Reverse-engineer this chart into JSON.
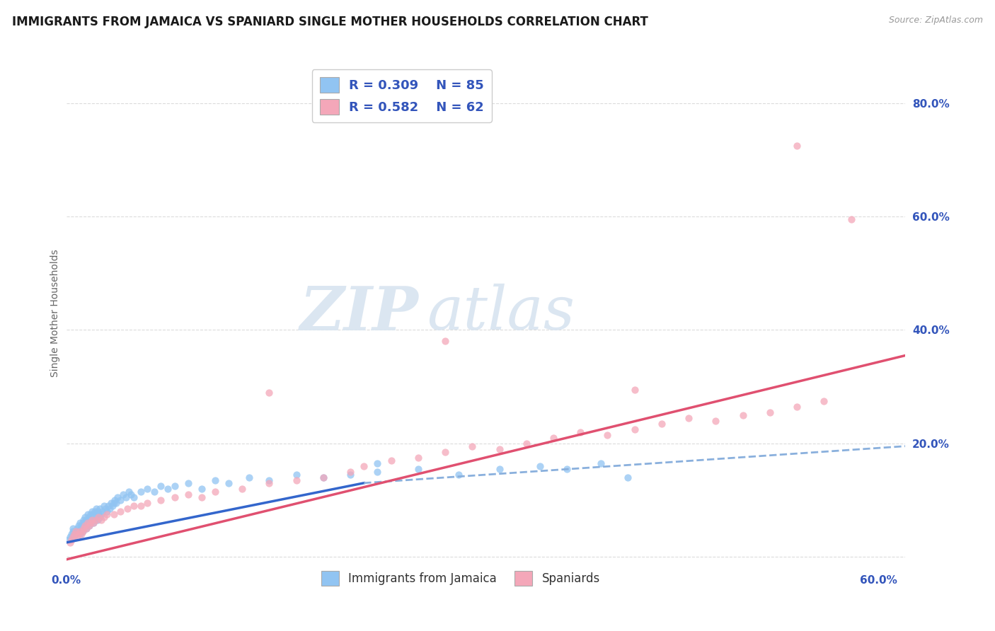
{
  "title": "IMMIGRANTS FROM JAMAICA VS SPANIARD SINGLE MOTHER HOUSEHOLDS CORRELATION CHART",
  "source": "Source: ZipAtlas.com",
  "ylabel": "Single Mother Households",
  "legend_label1": "Immigrants from Jamaica",
  "legend_label2": "Spaniards",
  "R1": 0.309,
  "N1": 85,
  "R2": 0.582,
  "N2": 62,
  "xlim": [
    0.0,
    0.62
  ],
  "ylim": [
    -0.02,
    0.88
  ],
  "ytick_values": [
    0.0,
    0.2,
    0.4,
    0.6,
    0.8
  ],
  "ytick_labels": [
    "",
    "20.0%",
    "40.0%",
    "60.0%",
    "80.0%"
  ],
  "xtick_values": [
    0.0,
    0.1,
    0.2,
    0.3,
    0.4,
    0.5,
    0.6
  ],
  "xtick_labels": [
    "0.0%",
    "",
    "",
    "",
    "",
    "",
    "60.0%"
  ],
  "color_jamaica": "#91C4F2",
  "color_spaniard": "#F4A7B9",
  "line_color_jamaica_solid": "#3366CC",
  "line_color_jamaica_dash": "#8AB0DD",
  "line_color_spaniard": "#E05070",
  "color_tick": "#3355BB",
  "watermark_color": "#D8E4F0",
  "background_color": "#FFFFFF",
  "grid_color": "#CCCCCC",
  "title_fontsize": 12,
  "axis_label_fontsize": 10,
  "tick_fontsize": 11,
  "jamaica_x": [
    0.002,
    0.003,
    0.004,
    0.005,
    0.005,
    0.006,
    0.007,
    0.008,
    0.008,
    0.009,
    0.01,
    0.01,
    0.01,
    0.011,
    0.011,
    0.012,
    0.012,
    0.013,
    0.013,
    0.014,
    0.014,
    0.015,
    0.015,
    0.016,
    0.016,
    0.017,
    0.017,
    0.018,
    0.018,
    0.019,
    0.019,
    0.02,
    0.02,
    0.021,
    0.021,
    0.022,
    0.022,
    0.023,
    0.023,
    0.024,
    0.025,
    0.025,
    0.026,
    0.027,
    0.028,
    0.029,
    0.03,
    0.031,
    0.032,
    0.033,
    0.034,
    0.035,
    0.036,
    0.037,
    0.038,
    0.04,
    0.042,
    0.044,
    0.046,
    0.048,
    0.05,
    0.055,
    0.06,
    0.065,
    0.07,
    0.075,
    0.08,
    0.09,
    0.1,
    0.11,
    0.12,
    0.135,
    0.15,
    0.17,
    0.19,
    0.21,
    0.23,
    0.26,
    0.29,
    0.32,
    0.35,
    0.37,
    0.395,
    0.415,
    0.23
  ],
  "jamaica_y": [
    0.03,
    0.035,
    0.04,
    0.045,
    0.05,
    0.035,
    0.04,
    0.045,
    0.05,
    0.055,
    0.04,
    0.045,
    0.06,
    0.05,
    0.055,
    0.045,
    0.06,
    0.05,
    0.065,
    0.055,
    0.07,
    0.05,
    0.065,
    0.06,
    0.075,
    0.055,
    0.07,
    0.06,
    0.075,
    0.065,
    0.08,
    0.06,
    0.075,
    0.065,
    0.08,
    0.07,
    0.085,
    0.065,
    0.08,
    0.075,
    0.07,
    0.085,
    0.075,
    0.08,
    0.09,
    0.085,
    0.08,
    0.09,
    0.085,
    0.095,
    0.09,
    0.095,
    0.1,
    0.095,
    0.105,
    0.1,
    0.11,
    0.105,
    0.115,
    0.11,
    0.105,
    0.115,
    0.12,
    0.115,
    0.125,
    0.12,
    0.125,
    0.13,
    0.12,
    0.135,
    0.13,
    0.14,
    0.135,
    0.145,
    0.14,
    0.145,
    0.15,
    0.155,
    0.145,
    0.155,
    0.16,
    0.155,
    0.165,
    0.14,
    0.165
  ],
  "spaniard_x": [
    0.003,
    0.004,
    0.005,
    0.006,
    0.007,
    0.008,
    0.009,
    0.01,
    0.011,
    0.012,
    0.013,
    0.014,
    0.015,
    0.016,
    0.017,
    0.018,
    0.019,
    0.02,
    0.022,
    0.024,
    0.026,
    0.028,
    0.03,
    0.035,
    0.04,
    0.045,
    0.05,
    0.055,
    0.06,
    0.07,
    0.08,
    0.09,
    0.1,
    0.11,
    0.13,
    0.15,
    0.17,
    0.19,
    0.21,
    0.22,
    0.24,
    0.26,
    0.28,
    0.3,
    0.32,
    0.34,
    0.36,
    0.38,
    0.4,
    0.42,
    0.44,
    0.46,
    0.48,
    0.5,
    0.52,
    0.54,
    0.56,
    0.58,
    0.28,
    0.15,
    0.42,
    0.54
  ],
  "spaniard_y": [
    0.025,
    0.03,
    0.035,
    0.04,
    0.045,
    0.035,
    0.04,
    0.045,
    0.04,
    0.045,
    0.05,
    0.055,
    0.05,
    0.06,
    0.055,
    0.06,
    0.065,
    0.06,
    0.065,
    0.07,
    0.065,
    0.07,
    0.075,
    0.075,
    0.08,
    0.085,
    0.09,
    0.09,
    0.095,
    0.1,
    0.105,
    0.11,
    0.105,
    0.115,
    0.12,
    0.13,
    0.135,
    0.14,
    0.15,
    0.16,
    0.17,
    0.175,
    0.185,
    0.195,
    0.19,
    0.2,
    0.21,
    0.22,
    0.215,
    0.225,
    0.235,
    0.245,
    0.24,
    0.25,
    0.255,
    0.265,
    0.275,
    0.595,
    0.38,
    0.29,
    0.295,
    0.725
  ],
  "trendline_jamaica_x0": 0.0,
  "trendline_jamaica_x1": 0.22,
  "trendline_jamaica_y0": 0.025,
  "trendline_jamaica_y1": 0.13,
  "trendline_jamaica_dash_x0": 0.22,
  "trendline_jamaica_dash_x1": 0.62,
  "trendline_jamaica_dash_y0": 0.13,
  "trendline_jamaica_dash_y1": 0.195,
  "trendline_spaniard_x0": 0.0,
  "trendline_spaniard_x1": 0.62,
  "trendline_spaniard_y0": -0.005,
  "trendline_spaniard_y1": 0.355
}
